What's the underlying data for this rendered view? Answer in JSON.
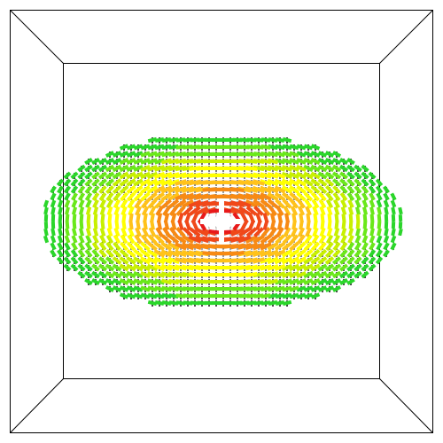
{
  "scene": {
    "type": "3d-vector-field-glyphs",
    "shape": "ellipsoid",
    "view": "front",
    "bounding_box": "wireframe-cube",
    "background_color": "#ffffff",
    "frame_color": "#000000",
    "colormap": [
      "#ffffff",
      "#e8191a",
      "#f0481a",
      "#f78a14",
      "#ffc21a",
      "#ffff00",
      "#c8f000",
      "#6ae81a",
      "#2ad62a"
    ],
    "glyph_shadow_color": "#000000"
  }
}
